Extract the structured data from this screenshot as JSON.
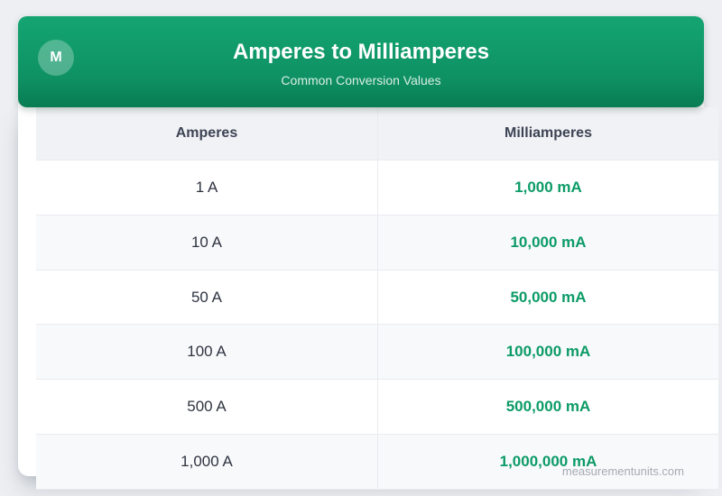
{
  "chart_data": {
    "type": "table",
    "title": "Amperes to Milliamperes",
    "subtitle": "Common Conversion Values",
    "columns": [
      "Amperes",
      "Milliamperes"
    ],
    "rows": [
      [
        "1 A",
        "1,000 mA"
      ],
      [
        "10 A",
        "10,000 mA"
      ],
      [
        "50 A",
        "50,000 mA"
      ],
      [
        "100 A",
        "100,000 mA"
      ],
      [
        "500 A",
        "500,000 mA"
      ],
      [
        "1,000 A",
        "1,000,000 mA"
      ]
    ]
  },
  "header": {
    "avatar_letter": "M"
  },
  "colors": {
    "page_background": "#edeff2",
    "header_gradient_top": "#14a572",
    "header_gradient_bottom": "#087c53",
    "avatar_background": "rgba(255,255,255,0.27)",
    "column_header_background": "#f1f2f5",
    "alt_row_background": "#f8f9fb",
    "column_header_text": "#3d4454",
    "amperes_text": "#2e3440",
    "milliamperes_text": "#0c9b67",
    "watermark_text": "#a5aab2"
  },
  "footer": {
    "watermark": "measurementunits.com"
  }
}
